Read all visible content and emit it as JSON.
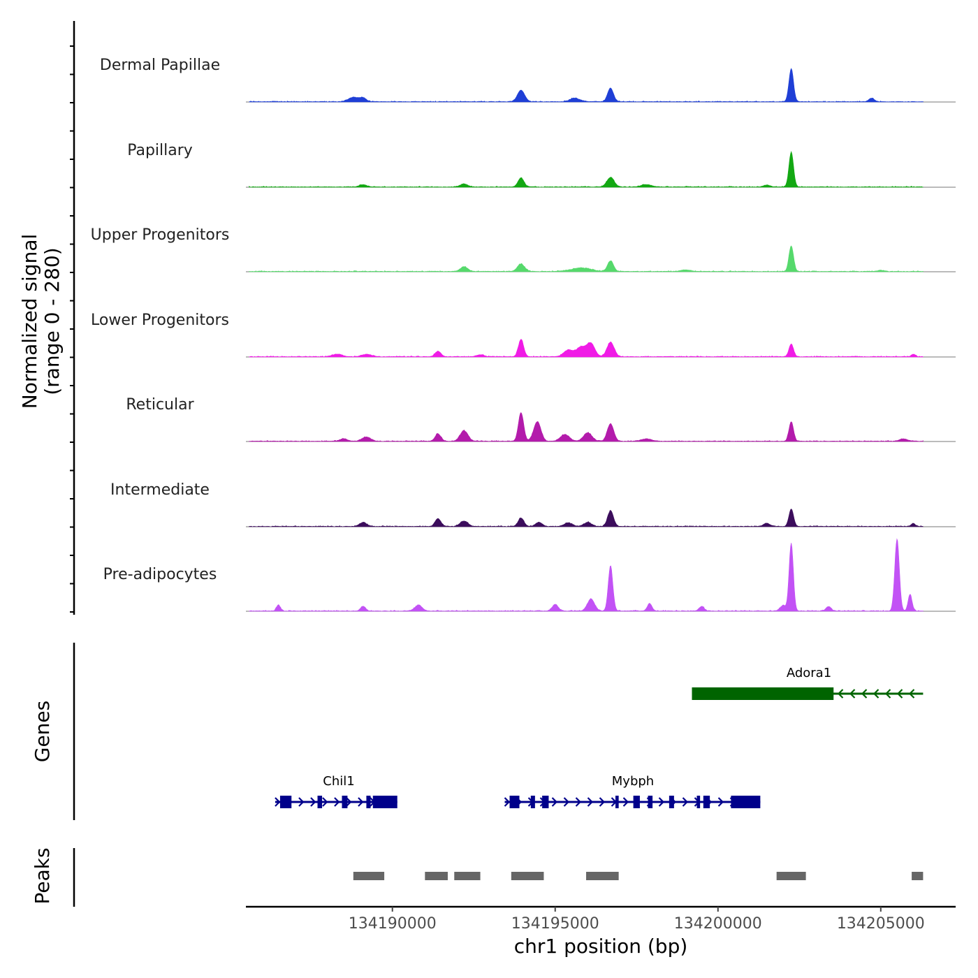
{
  "chart_data": {
    "type": "area",
    "title": "",
    "xlabel": "chr1 position (bp)",
    "ylabel_line1": "Normalized signal",
    "ylabel_line2": "(range 0 - 280)",
    "y_range": [
      0,
      280
    ],
    "xlim": [
      134185500,
      134207300
    ],
    "x_ticks": [
      134190000,
      134195000,
      134200000,
      134205000
    ],
    "x_tick_labels": [
      "134190000",
      "134195000",
      "134200000",
      "134205000"
    ],
    "tracks": [
      {
        "name": "Dermal Papillae",
        "color": "#1f3fd6",
        "peaks": [
          [
            134188800,
            15,
            150
          ],
          [
            134189100,
            12,
            100
          ],
          [
            134193950,
            38,
            110
          ],
          [
            134195600,
            12,
            150
          ],
          [
            134196700,
            45,
            90
          ],
          [
            134202250,
            110,
            70
          ],
          [
            134204720,
            12,
            80
          ]
        ]
      },
      {
        "name": "Papillary",
        "color": "#13a813",
        "peaks": [
          [
            134189100,
            8,
            110
          ],
          [
            134192200,
            10,
            110
          ],
          [
            134193950,
            30,
            90
          ],
          [
            134196700,
            32,
            110
          ],
          [
            134197800,
            8,
            150
          ],
          [
            134202250,
            115,
            70
          ],
          [
            134201500,
            6,
            100
          ]
        ]
      },
      {
        "name": "Upper Progenitors",
        "color": "#56d96c",
        "peaks": [
          [
            134192200,
            16,
            110
          ],
          [
            134193950,
            25,
            110
          ],
          [
            134195800,
            12,
            300
          ],
          [
            134196700,
            35,
            90
          ],
          [
            134202250,
            85,
            70
          ],
          [
            134199000,
            5,
            150
          ],
          [
            134205000,
            4,
            100
          ]
        ]
      },
      {
        "name": "Lower Progenitors",
        "color": "#f01be6",
        "peaks": [
          [
            134191400,
            18,
            90
          ],
          [
            134193950,
            58,
            80
          ],
          [
            134195400,
            22,
            140
          ],
          [
            134195800,
            32,
            150
          ],
          [
            134196100,
            42,
            120
          ],
          [
            134196700,
            48,
            110
          ],
          [
            134188300,
            8,
            150
          ],
          [
            134189200,
            8,
            150
          ],
          [
            134192700,
            6,
            120
          ],
          [
            134202250,
            42,
            70
          ],
          [
            134206000,
            8,
            60
          ]
        ]
      },
      {
        "name": "Reticular",
        "color": "#b31bab",
        "peaks": [
          [
            134189200,
            14,
            130
          ],
          [
            134191400,
            25,
            90
          ],
          [
            134192200,
            35,
            120
          ],
          [
            134193950,
            95,
            80
          ],
          [
            134194450,
            65,
            110
          ],
          [
            134195300,
            22,
            140
          ],
          [
            134196000,
            28,
            130
          ],
          [
            134196700,
            58,
            100
          ],
          [
            134202250,
            64,
            70
          ],
          [
            134197800,
            8,
            150
          ],
          [
            134205700,
            8,
            120
          ],
          [
            134188500,
            8,
            120
          ]
        ]
      },
      {
        "name": "Intermediate",
        "color": "#3c0d5c",
        "peaks": [
          [
            134189100,
            14,
            110
          ],
          [
            134191400,
            26,
            90
          ],
          [
            134192200,
            18,
            120
          ],
          [
            134193950,
            28,
            90
          ],
          [
            134194500,
            14,
            100
          ],
          [
            134195400,
            12,
            120
          ],
          [
            134196000,
            14,
            120
          ],
          [
            134196700,
            52,
            90
          ],
          [
            134202250,
            58,
            70
          ],
          [
            134201500,
            10,
            100
          ],
          [
            134206000,
            10,
            60
          ]
        ]
      },
      {
        "name": "Pre-adipocytes",
        "color": "#c252f5",
        "peaks": [
          [
            134186500,
            20,
            60
          ],
          [
            134189100,
            15,
            80
          ],
          [
            134190800,
            20,
            110
          ],
          [
            134195000,
            22,
            90
          ],
          [
            134196100,
            40,
            110
          ],
          [
            134196700,
            150,
            70
          ],
          [
            134197900,
            25,
            70
          ],
          [
            134199500,
            15,
            80
          ],
          [
            134202250,
            225,
            65
          ],
          [
            134202000,
            18,
            90
          ],
          [
            134205500,
            240,
            70
          ],
          [
            134205900,
            55,
            60
          ],
          [
            134203400,
            15,
            80
          ]
        ]
      }
    ],
    "genes_label": "Genes",
    "genes": [
      {
        "name": "Adora1",
        "color": "#006400",
        "strand": "-",
        "start": 134199200,
        "end": 134206300,
        "exons": [
          [
            134199200,
            134203550
          ]
        ]
      },
      {
        "name": "Chil1",
        "color": "#00008b",
        "strand": "+",
        "start": 134186400,
        "end": 134190150,
        "exons": [
          [
            134186550,
            134186900
          ],
          [
            134187700,
            134187840
          ],
          [
            134188450,
            134188620
          ],
          [
            134189200,
            134189330
          ],
          [
            134189400,
            134190150
          ]
        ]
      },
      {
        "name": "Mybph",
        "color": "#00008b",
        "strand": "+",
        "start": 134193450,
        "end": 134201300,
        "exons": [
          [
            134193600,
            134193900
          ],
          [
            134194250,
            134194380
          ],
          [
            134194600,
            134194800
          ],
          [
            134196850,
            134196950
          ],
          [
            134197400,
            134197600
          ],
          [
            134197850,
            134197990
          ],
          [
            134198500,
            134198650
          ],
          [
            134199350,
            134199450
          ],
          [
            134199550,
            134199750
          ],
          [
            134200400,
            134201300
          ]
        ]
      }
    ],
    "peaks_label": "Peaks",
    "peak_regions": [
      [
        134188800,
        134189750
      ],
      [
        134191000,
        134191700
      ],
      [
        134191900,
        134192700
      ],
      [
        134193650,
        134194650
      ],
      [
        134195950,
        134196950
      ],
      [
        134201800,
        134202700
      ],
      [
        134205950,
        134206300
      ]
    ]
  }
}
